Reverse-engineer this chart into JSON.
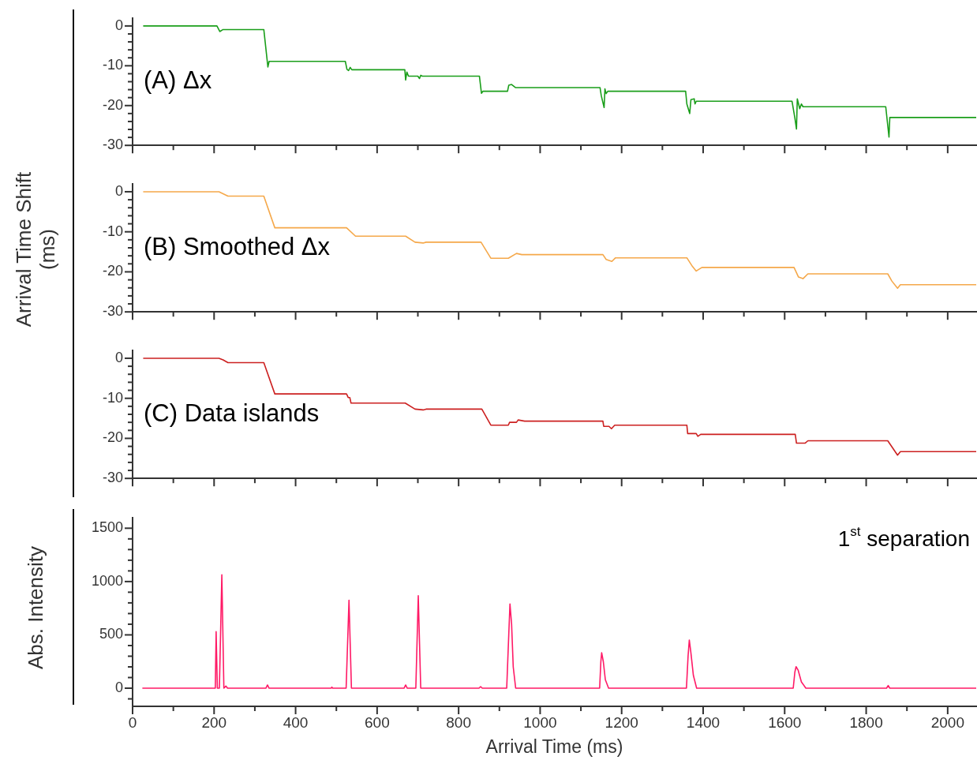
{
  "chart_data": [
    {
      "type": "line",
      "annotations": [
        "(A) Δx"
      ],
      "tick_labels": "y",
      "xlim": [
        0,
        2070
      ],
      "ylim": [
        -30,
        2
      ],
      "xticks": [
        0,
        {
          "value": 100,
          "label": null
        },
        200,
        {
          "value": 300,
          "label": null
        },
        400,
        {
          "value": 500,
          "label": null
        },
        600,
        {
          "value": 700,
          "label": null
        },
        800,
        {
          "value": 900,
          "label": null
        },
        1000,
        {
          "value": 1100,
          "label": null
        },
        1200,
        {
          "value": 1300,
          "label": null
        },
        1400,
        {
          "value": 1500,
          "label": null
        },
        1600,
        {
          "value": 1700,
          "label": null
        },
        1800,
        {
          "value": 1900,
          "label": null
        },
        2000
      ],
      "yticks": [
        0,
        {
          "value": -2,
          "label": null
        },
        {
          "value": -4,
          "label": null
        },
        {
          "value": -6,
          "label": null
        },
        {
          "value": -8,
          "label": null
        },
        -10,
        {
          "value": -12,
          "label": null
        },
        {
          "value": -14,
          "label": null
        },
        {
          "value": -16,
          "label": null
        },
        {
          "value": -18,
          "label": null
        },
        -20,
        {
          "value": -22,
          "label": null
        },
        {
          "value": -24,
          "label": null
        },
        {
          "value": -26,
          "label": null
        },
        {
          "value": -28,
          "label": null
        },
        -30
      ],
      "x": [
        26,
        207,
        214,
        222,
        322,
        332,
        335,
        522,
        526,
        530,
        534,
        538,
        668,
        670,
        673,
        677,
        700,
        704,
        707,
        711,
        851,
        856,
        860,
        920,
        923,
        930,
        940,
        1147,
        1150,
        1157,
        1159,
        1162,
        1166,
        1357,
        1360,
        1367,
        1370,
        1378,
        1380,
        1383,
        1618,
        1625,
        1629,
        1631,
        1637,
        1641,
        1645,
        1848,
        1856,
        1858,
        2070
      ],
      "series": [
        {
          "color": "#1a9e1a",
          "values": [
            0,
            0,
            -1.4,
            -0.9,
            -0.9,
            -10.3,
            -8.9,
            -8.9,
            -10.9,
            -11.2,
            -10.4,
            -11.0,
            -11.0,
            -13.6,
            -11.6,
            -12.6,
            -12.6,
            -13.2,
            -12.4,
            -12.6,
            -12.6,
            -16.9,
            -16.4,
            -16.4,
            -14.9,
            -14.7,
            -15.5,
            -15.5,
            -17.5,
            -20.5,
            -15.8,
            -17.0,
            -16.4,
            -16.4,
            -19.6,
            -22.0,
            -18.5,
            -18.3,
            -19.6,
            -18.9,
            -18.9,
            -23.1,
            -25.9,
            -18.3,
            -20.8,
            -19.6,
            -20.3,
            -20.3,
            -27.9,
            -23.0,
            -23.0
          ]
        }
      ]
    },
    {
      "type": "line",
      "ylabel": "Arrival Time Shift (ms)",
      "annotations": [
        "(B) Smoothed Δx"
      ],
      "tick_labels": "y",
      "xlim": [
        0,
        2070
      ],
      "ylim": [
        -30,
        2
      ],
      "xticks": [
        0,
        {
          "value": 100,
          "label": null
        },
        200,
        {
          "value": 300,
          "label": null
        },
        400,
        {
          "value": 500,
          "label": null
        },
        600,
        {
          "value": 700,
          "label": null
        },
        800,
        {
          "value": 900,
          "label": null
        },
        1000,
        {
          "value": 1100,
          "label": null
        },
        1200,
        {
          "value": 1300,
          "label": null
        },
        1400,
        {
          "value": 1500,
          "label": null
        },
        1600,
        {
          "value": 1700,
          "label": null
        },
        1800,
        {
          "value": 1900,
          "label": null
        },
        2000
      ],
      "yticks": [
        0,
        {
          "value": -2,
          "label": null
        },
        {
          "value": -4,
          "label": null
        },
        {
          "value": -6,
          "label": null
        },
        {
          "value": -8,
          "label": null
        },
        -10,
        {
          "value": -12,
          "label": null
        },
        {
          "value": -14,
          "label": null
        },
        {
          "value": -16,
          "label": null
        },
        {
          "value": -18,
          "label": null
        },
        -20,
        {
          "value": -22,
          "label": null
        },
        {
          "value": -24,
          "label": null
        },
        {
          "value": -26,
          "label": null
        },
        {
          "value": -28,
          "label": null
        },
        -30
      ],
      "x": [
        26,
        212,
        234,
        322,
        349,
        525,
        547,
        670,
        693,
        713,
        720,
        855,
        879,
        922,
        942,
        955,
        1154,
        1162,
        1176,
        1185,
        1360,
        1374,
        1383,
        1397,
        1623,
        1634,
        1645,
        1657,
        1853,
        1863,
        1877,
        1884,
        2070
      ],
      "series": [
        {
          "color": "#f5a84a",
          "values": [
            0,
            0,
            -1.1,
            -1.1,
            -9.0,
            -9.0,
            -11.1,
            -11.1,
            -12.6,
            -12.8,
            -12.6,
            -12.6,
            -16.6,
            -16.6,
            -15.4,
            -15.7,
            -15.7,
            -16.9,
            -17.4,
            -16.5,
            -16.5,
            -18.7,
            -19.8,
            -18.9,
            -18.9,
            -21.3,
            -21.7,
            -20.5,
            -20.5,
            -22.3,
            -24.1,
            -23.2,
            -23.2
          ]
        }
      ]
    },
    {
      "type": "line",
      "annotations": [
        "(C) Data islands"
      ],
      "tick_labels": "y",
      "xlim": [
        0,
        2070
      ],
      "ylim": [
        -30,
        2
      ],
      "xticks": [
        0,
        {
          "value": 100,
          "label": null
        },
        200,
        {
          "value": 300,
          "label": null
        },
        400,
        {
          "value": 500,
          "label": null
        },
        600,
        {
          "value": 700,
          "label": null
        },
        800,
        {
          "value": 900,
          "label": null
        },
        1000,
        {
          "value": 1100,
          "label": null
        },
        1200,
        {
          "value": 1300,
          "label": null
        },
        1400,
        {
          "value": 1500,
          "label": null
        },
        1600,
        {
          "value": 1700,
          "label": null
        },
        1800,
        {
          "value": 1900,
          "label": null
        },
        2000
      ],
      "yticks": [
        0,
        {
          "value": -2,
          "label": null
        },
        {
          "value": -4,
          "label": null
        },
        {
          "value": -6,
          "label": null
        },
        {
          "value": -8,
          "label": null
        },
        -10,
        {
          "value": -12,
          "label": null
        },
        {
          "value": -14,
          "label": null
        },
        {
          "value": -16,
          "label": null
        },
        {
          "value": -18,
          "label": null
        },
        -20,
        {
          "value": -22,
          "label": null
        },
        {
          "value": -24,
          "label": null
        },
        {
          "value": -26,
          "label": null
        },
        {
          "value": -28,
          "label": null
        },
        -30
      ],
      "x": [
        26,
        212,
        222,
        234,
        322,
        349,
        525,
        529,
        533,
        536,
        669,
        693,
        713,
        720,
        857,
        879,
        922,
        925,
        942,
        946,
        962,
        1154,
        1156,
        1169,
        1175,
        1183,
        1360,
        1362,
        1383,
        1387,
        1394,
        1626,
        1629,
        1650,
        1657,
        1853,
        1877,
        1884,
        2070
      ],
      "series": [
        {
          "color": "#cc2020",
          "values": [
            0,
            0,
            -0.4,
            -1.1,
            -1.1,
            -8.9,
            -8.9,
            -9.8,
            -9.8,
            -11.2,
            -11.2,
            -12.7,
            -12.9,
            -12.7,
            -12.7,
            -16.7,
            -16.7,
            -16.0,
            -16.0,
            -15.4,
            -15.7,
            -15.7,
            -17.0,
            -17.0,
            -17.6,
            -16.7,
            -16.7,
            -18.8,
            -18.8,
            -19.5,
            -19.0,
            -19.0,
            -21.2,
            -21.2,
            -20.6,
            -20.6,
            -24.2,
            -23.3,
            -23.3
          ]
        }
      ]
    },
    {
      "type": "line",
      "xlabel": "Arrival Time (ms)",
      "ylabel": "Abs. Intensity",
      "annotations": [
        "1$^{st}$ separation"
      ],
      "xlim": [
        0,
        2070
      ],
      "ylim": [
        -170,
        1600
      ],
      "xticks": [
        0,
        {
          "value": 100,
          "label": null
        },
        200,
        {
          "value": 300,
          "label": null
        },
        400,
        {
          "value": 500,
          "label": null
        },
        600,
        {
          "value": 700,
          "label": null
        },
        800,
        {
          "value": 900,
          "label": null
        },
        1000,
        {
          "value": 1100,
          "label": null
        },
        1200,
        {
          "value": 1300,
          "label": null
        },
        1400,
        {
          "value": 1500,
          "label": null
        },
        1600,
        {
          "value": 1700,
          "label": null
        },
        1800,
        {
          "value": 1900,
          "label": null
        },
        2000
      ],
      "yticks": [
        {
          "value": -100,
          "label": null
        },
        0,
        {
          "value": 100,
          "label": null
        },
        {
          "value": 200,
          "label": null
        },
        {
          "value": 300,
          "label": null
        },
        {
          "value": 400,
          "label": null
        },
        500,
        {
          "value": 600,
          "label": null
        },
        {
          "value": 700,
          "label": null
        },
        {
          "value": 800,
          "label": null
        },
        {
          "value": 900,
          "label": null
        },
        1000,
        {
          "value": 1100,
          "label": null
        },
        {
          "value": 1200,
          "label": null
        },
        {
          "value": 1300,
          "label": null
        },
        {
          "value": 1400,
          "label": null
        },
        1500
      ],
      "x": [
        24,
        203,
        205,
        208,
        213,
        219,
        224,
        229,
        233,
        327,
        331,
        335,
        487,
        489,
        491,
        524,
        531,
        537,
        666,
        670,
        674,
        695,
        701,
        707,
        850,
        854,
        858,
        918,
        923,
        926,
        930,
        934,
        940,
        1146,
        1149,
        1151,
        1155,
        1160,
        1168,
        1359,
        1363,
        1366,
        1370,
        1376,
        1384,
        1621,
        1625,
        1628,
        1633,
        1641,
        1652,
        1850,
        1854,
        1858,
        2070
      ],
      "series": [
        {
          "color": "#ff1a66",
          "values": [
            0,
            0,
            530,
            0,
            0,
            1064,
            0,
            20,
            0,
            0,
            30,
            0,
            0,
            10,
            0,
            0,
            825,
            0,
            0,
            30,
            0,
            0,
            867,
            0,
            0,
            15,
            0,
            0,
            500,
            789,
            600,
            200,
            0,
            0,
            250,
            332,
            250,
            80,
            0,
            0,
            300,
            452,
            330,
            120,
            0,
            0,
            150,
            202,
            170,
            60,
            0,
            0,
            25,
            0,
            0
          ]
        }
      ]
    }
  ]
}
